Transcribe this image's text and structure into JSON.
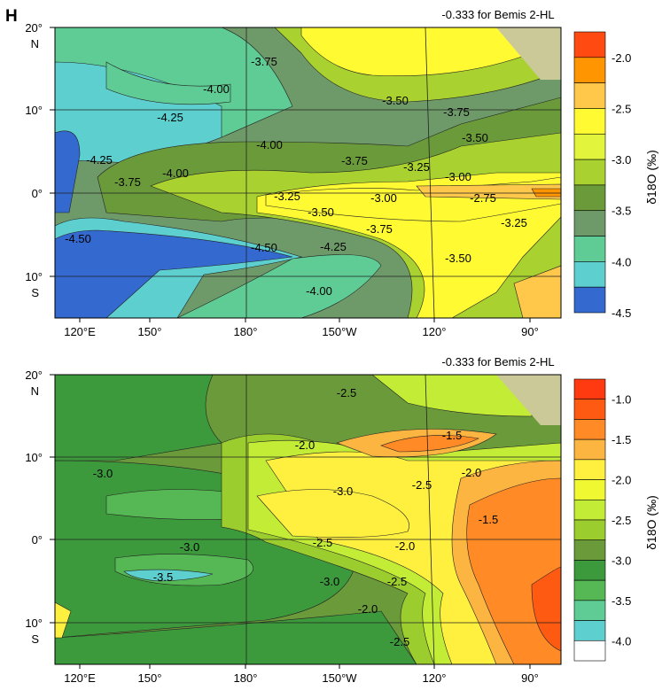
{
  "panel_label": "H",
  "chart_data": [
    {
      "type": "heatmap",
      "subtitle": "-0.333 for Bemis 2-HL",
      "x_ticks": [
        "120°E",
        "150°",
        "180°",
        "150°W",
        "120°",
        "90°"
      ],
      "y_ticks": [
        "20°",
        "N",
        "10°",
        "0°",
        "10°",
        "S"
      ],
      "colorbar_label": "δ18O (‰)",
      "colorbar_ticks": [
        "-2.0",
        "-2.5",
        "-3.0",
        "-3.5",
        "-4.0",
        "-4.5"
      ],
      "colorbar_colors": [
        "#ff4a12",
        "#ff9500",
        "#ffc84a",
        "#fffa32",
        "#e2f53c",
        "#a9d130",
        "#6a9a3a",
        "#6e9a6a",
        "#5ecc94",
        "#5ecfcf",
        "#3469d0"
      ],
      "contour_labels": [
        "-3.75",
        "-4.00",
        "-4.25",
        "-4.25",
        "-4.00",
        "-3.75",
        "-4.00",
        "-3.50",
        "-3.75",
        "-3.75",
        "-3.50",
        "-3.25",
        "-3.00",
        "-3.25",
        "-3.50",
        "-3.00",
        "-2.75",
        "-3.75",
        "-3.25",
        "-4.50",
        "-4.50",
        "-4.25",
        "-3.50",
        "-4.00"
      ]
    },
    {
      "type": "heatmap",
      "subtitle": "-0.333 for Bemis 2-HL",
      "x_ticks": [
        "120°E",
        "150°",
        "180°",
        "150°W",
        "120°",
        "90°"
      ],
      "y_ticks": [
        "20°",
        "N",
        "10°",
        "0°",
        "10°",
        "S"
      ],
      "colorbar_label": "δ18O (‰)",
      "colorbar_ticks": [
        "-1.0",
        "-1.5",
        "-2.0",
        "-2.5",
        "-3.0",
        "-3.5",
        "-4.0"
      ],
      "colorbar_colors": [
        "#ff3a10",
        "#ff5a12",
        "#ff8a26",
        "#fdb542",
        "#fff040",
        "#f0f832",
        "#c2ec36",
        "#9ccd2f",
        "#6a9a3a",
        "#3c9a3c",
        "#56b854",
        "#5ecc94",
        "#5ecfcf",
        "#ffffff"
      ],
      "contour_labels": [
        "-2.5",
        "-2.0",
        "-1.5",
        "-3.0",
        "-2.5",
        "-2.0",
        "-3.0",
        "-1.5",
        "-3.0",
        "-2.5",
        "-2.0",
        "-3.5",
        "-3.0",
        "-2.5",
        "-2.0",
        "-2.5"
      ]
    }
  ]
}
